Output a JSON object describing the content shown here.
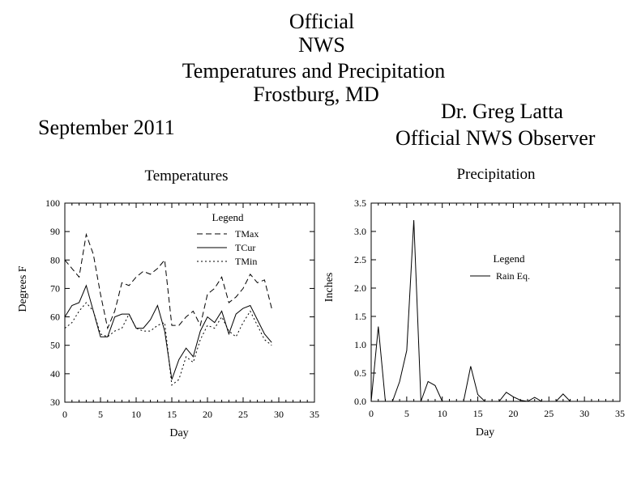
{
  "header": {
    "line1": "Official",
    "line2": "NWS",
    "line3": "Temperatures and Precipitation",
    "line4": "Frostburg, MD",
    "month": "September 2011",
    "observer_name": "Dr. Greg Latta",
    "observer_title": "Official NWS Observer"
  },
  "chart_data": [
    {
      "type": "line",
      "title": "Temperatures",
      "xlabel": "Day",
      "ylabel": "Degrees F",
      "xlim": [
        0,
        35
      ],
      "ylim": [
        30,
        100
      ],
      "xticks": [
        0,
        5,
        10,
        15,
        20,
        25,
        30,
        35
      ],
      "yticks": [
        30,
        40,
        50,
        60,
        70,
        80,
        90,
        100
      ],
      "legend_title": "Legend",
      "legend_position": "top-right",
      "grid": false,
      "x": [
        0,
        1,
        2,
        3,
        4,
        5,
        6,
        7,
        8,
        9,
        10,
        11,
        12,
        13,
        14,
        15,
        16,
        17,
        18,
        19,
        20,
        21,
        22,
        23,
        24,
        25,
        26,
        27,
        28,
        29
      ],
      "series": [
        {
          "name": "TMax",
          "dash": "dashed",
          "values": [
            80,
            77,
            74,
            89,
            82,
            68,
            56,
            62,
            72,
            71,
            74,
            76,
            75,
            77,
            80,
            57,
            57,
            60,
            62,
            57,
            68,
            70,
            74,
            65,
            67,
            70,
            75,
            72,
            73,
            63
          ]
        },
        {
          "name": "TCur",
          "dash": "solid",
          "values": [
            60,
            64,
            65,
            71,
            62,
            53,
            53,
            60,
            61,
            61,
            56,
            56,
            59,
            64,
            55,
            38,
            45,
            49,
            46,
            55,
            60,
            58,
            62,
            54,
            61,
            63,
            64,
            59,
            54,
            51
          ]
        },
        {
          "name": "TMin",
          "dash": "dotted",
          "values": [
            56,
            58,
            62,
            65,
            62,
            54,
            53,
            55,
            56,
            61,
            56,
            55,
            55,
            57,
            58,
            36,
            38,
            46,
            44,
            52,
            57,
            56,
            60,
            55,
            53,
            58,
            62,
            57,
            52,
            50
          ]
        }
      ]
    },
    {
      "type": "line",
      "title": "Precipitation",
      "xlabel": "Day",
      "ylabel": "Inches",
      "xlim": [
        0,
        35
      ],
      "ylim": [
        0,
        3.5
      ],
      "xticks": [
        0,
        5,
        10,
        15,
        20,
        25,
        30,
        35
      ],
      "yticks": [
        0,
        0.5,
        1.0,
        1.5,
        2.0,
        2.5,
        3.0,
        3.5
      ],
      "ytick_labels": [
        "0.0",
        "0.5",
        "1.0",
        "1.5",
        "2.0",
        "2.5",
        "3.0",
        "3.5"
      ],
      "legend_title": "Legend",
      "legend_position": "center-right",
      "grid": false,
      "x": [
        0,
        1,
        2,
        3,
        4,
        5,
        6,
        7,
        8,
        9,
        10,
        11,
        12,
        13,
        14,
        15,
        16,
        17,
        18,
        19,
        20,
        21,
        22,
        23,
        24,
        25,
        26,
        27,
        28,
        29
      ],
      "series": [
        {
          "name": "Rain Eq.",
          "dash": "solid",
          "values": [
            0,
            1.32,
            0,
            0,
            0.35,
            0.9,
            3.2,
            0,
            0.35,
            0.28,
            0,
            0,
            0,
            0,
            0.62,
            0.12,
            0,
            0,
            0,
            0.16,
            0.08,
            0.02,
            0,
            0.07,
            0,
            0,
            0,
            0.13,
            0,
            0
          ]
        }
      ]
    }
  ]
}
